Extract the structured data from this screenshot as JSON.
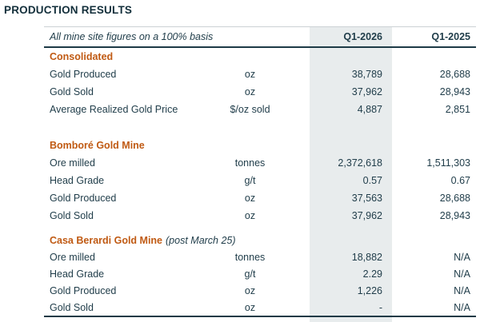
{
  "page_title": "PRODUCTION RESULTS",
  "table": {
    "caption": "All mine site figures on a 100% basis",
    "columns": [
      "Q1-2026",
      "Q1-2025"
    ],
    "sections": [
      {
        "title": "Consolidated",
        "title_suffix": "",
        "rows": [
          {
            "label": "Gold Produced",
            "unit": "oz",
            "q1_2026": "38,789",
            "q1_2025": "28,688"
          },
          {
            "label": "Gold Sold",
            "unit": "oz",
            "q1_2026": "37,962",
            "q1_2025": "28,943"
          },
          {
            "label": "Average Realized Gold Price",
            "unit": "$/oz sold",
            "q1_2026": "4,887",
            "q1_2025": "2,851"
          }
        ]
      },
      {
        "title": "Bomboré Gold Mine",
        "title_suffix": "",
        "rows": [
          {
            "label": "Ore milled",
            "unit": "tonnes",
            "q1_2026": "2,372,618",
            "q1_2025": "1,511,303"
          },
          {
            "label": "Head Grade",
            "unit": "g/t",
            "q1_2026": "0.57",
            "q1_2025": "0.67"
          },
          {
            "label": "Gold Produced",
            "unit": "oz",
            "q1_2026": "37,563",
            "q1_2025": "28,688"
          },
          {
            "label": "Gold Sold",
            "unit": "oz",
            "q1_2026": "37,962",
            "q1_2025": "28,943"
          }
        ]
      },
      {
        "title": "Casa Berardi Gold Mine",
        "title_suffix": "(post March 25)",
        "rows": [
          {
            "label": "Ore milled",
            "unit": "tonnes",
            "q1_2026": "18,882",
            "q1_2025": "N/A"
          },
          {
            "label": "Head Grade",
            "unit": "g/t",
            "q1_2026": "2.29",
            "q1_2025": "N/A"
          },
          {
            "label": "Gold Produced",
            "unit": "oz",
            "q1_2026": "1,226",
            "q1_2025": "N/A"
          },
          {
            "label": "Gold Sold",
            "unit": "oz",
            "q1_2026": "-",
            "q1_2025": "N/A"
          }
        ]
      }
    ]
  },
  "colors": {
    "title_text": "#132f3b",
    "body_text": "#1f3c49",
    "section_accent": "#c05a13",
    "column_shade": "#e8eced",
    "rule_dark": "#1d3a46"
  }
}
